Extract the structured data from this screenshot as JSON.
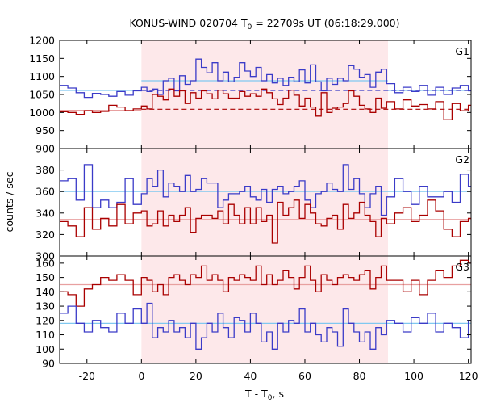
{
  "chart_data": {
    "type": "line",
    "title": {
      "main": "KONUS-WIND 020704 T",
      "sub": "0",
      "rest": " = 22709s UT (06:18:29.000)"
    },
    "xlabel": {
      "main": "T - T",
      "sub": "0",
      "rest": ", s"
    },
    "ylabel": "counts / sec",
    "xlim": [
      -30,
      121
    ],
    "xticks": [
      "-20",
      "0",
      "20",
      "40",
      "60",
      "80",
      "100",
      "120"
    ],
    "highlight_interval": [
      0,
      90.5
    ],
    "colors": {
      "red": "#aa0000",
      "blue": "#3b3bc8",
      "bg_red": "#e8a0a0",
      "bg_blue": "#80c8f0",
      "highlight": "#fde8ea"
    },
    "bin_edges": [
      -30,
      -27,
      -24,
      -21,
      -18,
      -15,
      -12,
      -9,
      -6,
      -3,
      0,
      2,
      4,
      6,
      8,
      10,
      12,
      14,
      16,
      18,
      20,
      22,
      24,
      26,
      28,
      30,
      32,
      34,
      36,
      38,
      40,
      42,
      44,
      46,
      48,
      50,
      52,
      54,
      56,
      58,
      60,
      62,
      64,
      66,
      68,
      70,
      72,
      74,
      76,
      78,
      80,
      82,
      84,
      86,
      88,
      90,
      93,
      96,
      99,
      102,
      105,
      108,
      111,
      114,
      117,
      120,
      121
    ],
    "panels": [
      {
        "label": "G1",
        "ylim": [
          900,
          1200
        ],
        "yticks": [
          "900",
          "950",
          "1000",
          "1050",
          "1100",
          "1150",
          "1200"
        ],
        "series": [
          {
            "color": "blue",
            "values": [
              1075,
              1068,
              1055,
              1042,
              1053,
              1050,
              1045,
              1058,
              1048,
              1060,
              1070,
              1058,
              1065,
              1050,
              1088,
              1095,
              1060,
              1102,
              1078,
              1088,
              1148,
              1125,
              1110,
              1138,
              1088,
              1112,
              1085,
              1098,
              1138,
              1115,
              1100,
              1125,
              1088,
              1105,
              1082,
              1095,
              1075,
              1098,
              1085,
              1118,
              1082,
              1132,
              1085,
              1060,
              1095,
              1078,
              1095,
              1088,
              1130,
              1120,
              1098,
              1105,
              1070,
              1112,
              1120,
              1080,
              1055,
              1070,
              1058,
              1075,
              1048,
              1070,
              1050,
              1068,
              1075,
              1060
            ]
          },
          {
            "color": "red",
            "values": [
              1002,
              1000,
              995,
              1005,
              1000,
              1003,
              1020,
              1015,
              1005,
              1010,
              1018,
              1010,
              1050,
              1045,
              1035,
              1065,
              1045,
              1060,
              1025,
              1055,
              1040,
              1060,
              1052,
              1038,
              1062,
              1052,
              1040,
              1040,
              1058,
              1045,
              1052,
              1045,
              1065,
              1055,
              1038,
              1022,
              1040,
              1062,
              1048,
              1018,
              1040,
              1015,
              990,
              1055,
              1000,
              1012,
              1015,
              1025,
              1060,
              1045,
              1020,
              1010,
              1000,
              1040,
              1012,
              1030,
              1010,
              1035,
              1018,
              1022,
              1010,
              1030,
              980,
              1025,
              1005,
              1020
            ]
          }
        ],
        "backgrounds": [
          {
            "color": "bg_blue",
            "style": "solid",
            "segments": [
              [
                -30,
                0,
                1061
              ],
              [
                0,
                90.5,
                1088
              ],
              [
                90.5,
                121,
                1061
              ]
            ]
          },
          {
            "color": "bg_red",
            "style": "solid",
            "segments": [
              [
                -30,
                0,
                1006
              ]
            ]
          },
          {
            "color": "red",
            "style": "dashed",
            "segments": [
              [
                0,
                121,
                1009
              ]
            ]
          },
          {
            "color": "blue",
            "style": "dashed",
            "segments": [
              [
                0,
                121,
                1061
              ]
            ]
          }
        ]
      },
      {
        "label": "G2",
        "ylim": [
          300,
          400
        ],
        "yticks": [
          "300",
          "320",
          "340",
          "360",
          "380"
        ],
        "series": [
          {
            "color": "blue",
            "values": [
              370,
              372,
              352,
              385,
              345,
              352,
              345,
              350,
              372,
              348,
              358,
              372,
              365,
              380,
              355,
              368,
              365,
              360,
              375,
              360,
              362,
              372,
              368,
              368,
              345,
              352,
              358,
              358,
              360,
              365,
              355,
              352,
              362,
              350,
              362,
              365,
              358,
              360,
              365,
              370,
              352,
              345,
              358,
              360,
              368,
              362,
              360,
              385,
              362,
              372,
              358,
              345,
              358,
              365,
              338,
              355,
              372,
              360,
              348,
              365,
              355,
              355,
              360,
              350,
              376,
              365
            ]
          },
          {
            "color": "red",
            "values": [
              332,
              328,
              318,
              345,
              325,
              335,
              328,
              348,
              330,
              340,
              342,
              328,
              330,
              342,
              328,
              338,
              332,
              338,
              345,
              322,
              335,
              338,
              338,
              335,
              342,
              330,
              348,
              338,
              330,
              345,
              330,
              345,
              332,
              338,
              312,
              350,
              338,
              345,
              352,
              335,
              348,
              340,
              330,
              328,
              335,
              338,
              325,
              348,
              335,
              340,
              350,
              338,
              332,
              318,
              335,
              330,
              340,
              345,
              332,
              338,
              352,
              342,
              325,
              318,
              332,
              335
            ]
          }
        ],
        "backgrounds": [
          {
            "color": "bg_blue",
            "style": "solid",
            "segments": [
              [
                -30,
                121,
                360
              ]
            ]
          },
          {
            "color": "bg_red",
            "style": "solid",
            "segments": [
              [
                -30,
                121,
                334
              ]
            ]
          }
        ]
      },
      {
        "label": "G3",
        "ylim": [
          90,
          165
        ],
        "yticks": [
          "90",
          "100",
          "110",
          "120",
          "130",
          "140",
          "150",
          "160"
        ],
        "series": [
          {
            "color": "red",
            "values": [
              140,
              138,
              130,
              142,
              145,
              150,
              148,
              152,
              148,
              138,
              150,
              148,
              140,
              145,
              138,
              150,
              152,
              148,
              145,
              152,
              150,
              158,
              148,
              152,
              148,
              140,
              150,
              148,
              152,
              150,
              148,
              158,
              145,
              152,
              145,
              148,
              155,
              150,
              142,
              150,
              158,
              148,
              140,
              152,
              148,
              145,
              150,
              152,
              150,
              148,
              152,
              155,
              142,
              150,
              158,
              148,
              148,
              140,
              148,
              138,
              148,
              155,
              150,
              158,
              162,
              160
            ]
          },
          {
            "color": "blue",
            "values": [
              125,
              130,
              118,
              112,
              120,
              115,
              112,
              125,
              118,
              128,
              118,
              132,
              108,
              115,
              112,
              120,
              112,
              115,
              108,
              118,
              100,
              108,
              118,
              112,
              125,
              115,
              108,
              122,
              120,
              112,
              125,
              118,
              105,
              112,
              100,
              118,
              112,
              120,
              118,
              128,
              112,
              118,
              110,
              105,
              115,
              112,
              102,
              128,
              118,
              112,
              105,
              112,
              100,
              115,
              110,
              120,
              118,
              112,
              122,
              118,
              125,
              112,
              118,
              115,
              108,
              120
            ]
          }
        ],
        "backgrounds": [
          {
            "color": "bg_red",
            "style": "solid",
            "segments": [
              [
                -30,
                121,
                145
              ]
            ]
          },
          {
            "color": "bg_blue",
            "style": "solid",
            "segments": [
              [
                -30,
                121,
                118
              ]
            ]
          }
        ]
      }
    ]
  }
}
